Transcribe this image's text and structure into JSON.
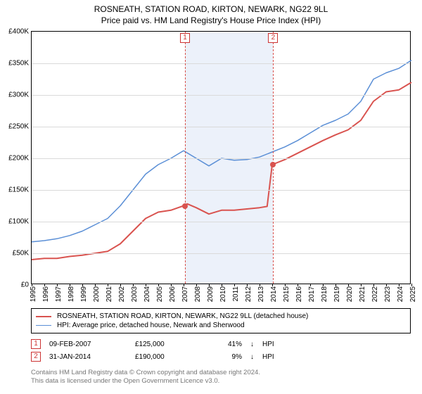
{
  "title": "ROSNEATH, STATION ROAD, KIRTON, NEWARK, NG22 9LL",
  "subtitle": "Price paid vs. HM Land Registry's House Price Index (HPI)",
  "chart": {
    "type": "line",
    "background_color": "#ffffff",
    "grid_color": "#dadada",
    "axis_color": "#000000",
    "label_fontsize": 10,
    "title_fontsize": 12,
    "x": {
      "min": 1995,
      "max": 2025,
      "ticks": [
        1995,
        1996,
        1997,
        1998,
        1999,
        2000,
        2001,
        2002,
        2003,
        2004,
        2005,
        2006,
        2007,
        2008,
        2009,
        2010,
        2011,
        2012,
        2013,
        2014,
        2015,
        2016,
        2017,
        2018,
        2019,
        2020,
        2021,
        2022,
        2023,
        2024,
        2025
      ]
    },
    "y": {
      "min": 0,
      "max": 400000,
      "ticks": [
        0,
        50000,
        100000,
        150000,
        200000,
        250000,
        300000,
        350000,
        400000
      ],
      "tick_labels": [
        "£0",
        "£50K",
        "£100K",
        "£150K",
        "£200K",
        "£250K",
        "£300K",
        "£350K",
        "£400K"
      ]
    },
    "shade_band": {
      "from": 2007.11,
      "to": 2014.08,
      "color": "rgba(200,215,240,0.35)"
    },
    "series": [
      {
        "id": "property",
        "color": "#d9534f",
        "width": 2,
        "points": [
          [
            1995,
            40000
          ],
          [
            1996,
            42000
          ],
          [
            1997,
            42000
          ],
          [
            1998,
            45000
          ],
          [
            1999,
            47000
          ],
          [
            2000,
            50000
          ],
          [
            2001,
            53000
          ],
          [
            2002,
            65000
          ],
          [
            2003,
            85000
          ],
          [
            2004,
            105000
          ],
          [
            2005,
            115000
          ],
          [
            2006,
            118000
          ],
          [
            2007,
            125000
          ],
          [
            2007.3,
            128000
          ],
          [
            2008,
            122000
          ],
          [
            2009,
            112000
          ],
          [
            2010,
            118000
          ],
          [
            2011,
            118000
          ],
          [
            2012,
            120000
          ],
          [
            2013,
            122000
          ],
          [
            2013.6,
            124000
          ],
          [
            2014,
            190000
          ],
          [
            2015,
            198000
          ],
          [
            2016,
            208000
          ],
          [
            2017,
            218000
          ],
          [
            2018,
            228000
          ],
          [
            2019,
            237000
          ],
          [
            2020,
            245000
          ],
          [
            2021,
            260000
          ],
          [
            2022,
            290000
          ],
          [
            2023,
            305000
          ],
          [
            2024,
            308000
          ],
          [
            2025,
            320000
          ]
        ]
      },
      {
        "id": "hpi",
        "color": "#5b8fd6",
        "width": 1.5,
        "points": [
          [
            1995,
            68000
          ],
          [
            1996,
            70000
          ],
          [
            1997,
            73000
          ],
          [
            1998,
            78000
          ],
          [
            1999,
            85000
          ],
          [
            2000,
            95000
          ],
          [
            2001,
            105000
          ],
          [
            2002,
            125000
          ],
          [
            2003,
            150000
          ],
          [
            2004,
            175000
          ],
          [
            2005,
            190000
          ],
          [
            2006,
            200000
          ],
          [
            2007,
            212000
          ],
          [
            2008,
            200000
          ],
          [
            2009,
            188000
          ],
          [
            2010,
            200000
          ],
          [
            2011,
            197000
          ],
          [
            2012,
            198000
          ],
          [
            2013,
            202000
          ],
          [
            2014,
            210000
          ],
          [
            2015,
            218000
          ],
          [
            2016,
            228000
          ],
          [
            2017,
            240000
          ],
          [
            2018,
            252000
          ],
          [
            2019,
            260000
          ],
          [
            2020,
            270000
          ],
          [
            2021,
            290000
          ],
          [
            2022,
            325000
          ],
          [
            2023,
            335000
          ],
          [
            2024,
            342000
          ],
          [
            2025,
            355000
          ]
        ]
      }
    ],
    "markers": [
      {
        "x": 2007.11,
        "y": 125000,
        "color": "#d9534f"
      },
      {
        "x": 2014.08,
        "y": 190000,
        "color": "#d9534f"
      }
    ],
    "ref_lines": [
      {
        "n": "1",
        "x": 2007.11
      },
      {
        "n": "2",
        "x": 2014.08
      }
    ]
  },
  "legend": {
    "items": [
      {
        "color": "#d9534f",
        "width": 2,
        "label": "ROSNEATH, STATION ROAD, KIRTON, NEWARK, NG22 9LL (detached house)"
      },
      {
        "color": "#5b8fd6",
        "width": 1.5,
        "label": "HPI: Average price, detached house, Newark and Sherwood"
      }
    ]
  },
  "refs": [
    {
      "n": "1",
      "date": "09-FEB-2007",
      "price": "£125,000",
      "pct": "41%",
      "arrow": "↓",
      "hpi_label": "HPI"
    },
    {
      "n": "2",
      "date": "31-JAN-2014",
      "price": "£190,000",
      "pct": "9%",
      "arrow": "↓",
      "hpi_label": "HPI"
    }
  ],
  "attribution": {
    "l1": "Contains HM Land Registry data © Crown copyright and database right 2024.",
    "l2": "This data is licensed under the Open Government Licence v3.0."
  }
}
